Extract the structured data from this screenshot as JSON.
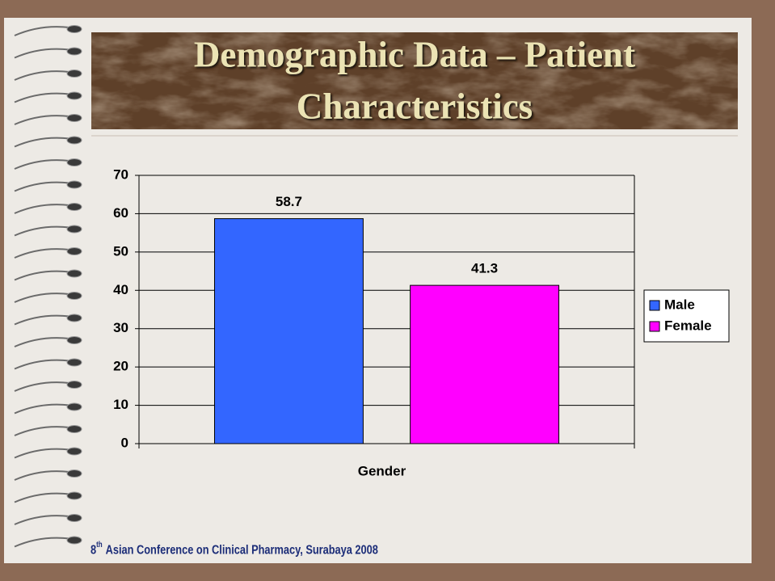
{
  "slide": {
    "title_lines": [
      "Demographic Data – Patient",
      "Characteristics"
    ],
    "footer": {
      "ordinal": "8",
      "suffix": "th",
      "text": "Asian Conference on Clinical Pharmacy, Surabaya 2008"
    }
  },
  "chart_data": {
    "type": "bar",
    "x_label": "Gender",
    "categories": [
      null
    ],
    "series": [
      {
        "name": "Male",
        "color": "#3366ff",
        "values": [
          58.7
        ]
      },
      {
        "name": "Female",
        "color": "#ff00ff",
        "values": [
          41.3
        ]
      }
    ],
    "ylim": [
      0,
      70
    ],
    "yticks": [
      0,
      10,
      20,
      30,
      40,
      50,
      60,
      70
    ],
    "grid": true,
    "legend": "right"
  }
}
